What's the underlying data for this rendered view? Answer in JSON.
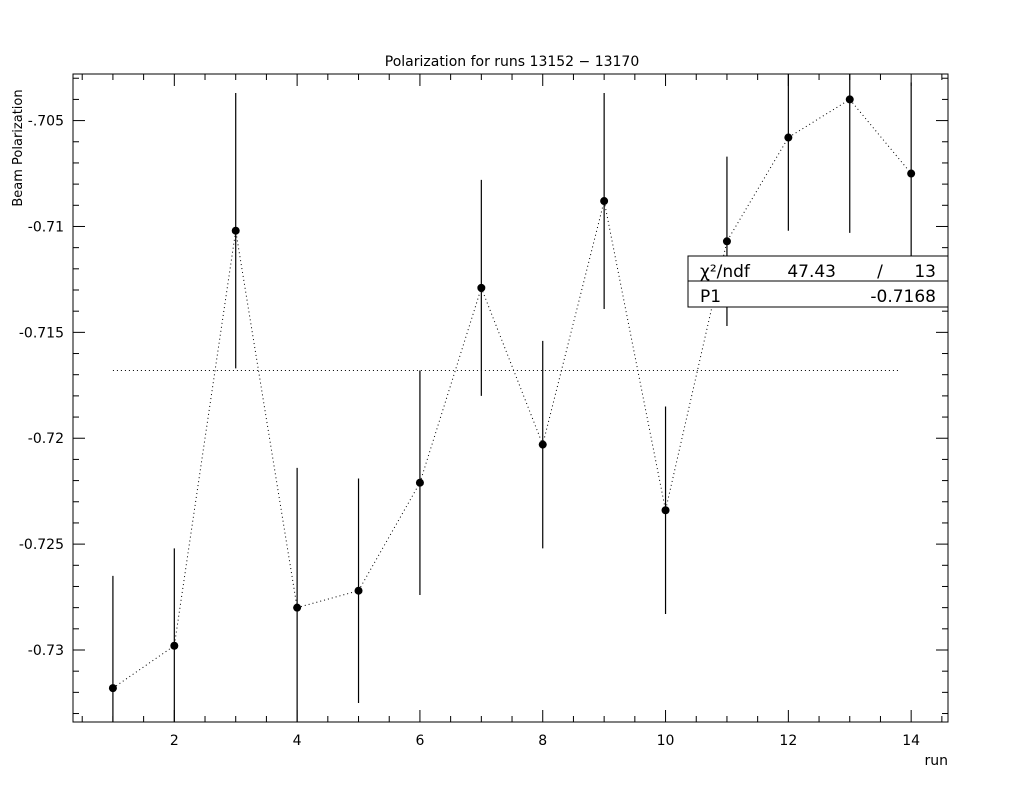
{
  "chart_data": {
    "type": "scatter",
    "title": "Polarization for runs 13152 − 13170",
    "xlabel": "run",
    "ylabel": "Beam Polarization",
    "xlim": [
      0.35,
      14.6
    ],
    "ylim": [
      -0.7334,
      -0.7028
    ],
    "x_ticks": [
      2,
      4,
      6,
      8,
      10,
      12,
      14
    ],
    "y_ticks": [
      -0.705,
      -0.71,
      -0.715,
      -0.72,
      -0.725,
      -0.73
    ],
    "y_tick_labels": [
      "-.705",
      "-0.71",
      "-0.715",
      "-0.72",
      "-0.725",
      "-0.73"
    ],
    "series": [
      {
        "x": [
          1,
          2,
          3,
          4,
          5,
          6,
          7,
          8,
          9,
          10,
          11,
          12,
          13,
          14
        ],
        "y": [
          -0.7318,
          -0.7298,
          -0.7102,
          -0.728,
          -0.7272,
          -0.7221,
          -0.7129,
          -0.7203,
          -0.7088,
          -0.7234,
          -0.7107,
          -0.7058,
          -0.704,
          -0.7075
        ],
        "errors": [
          0.0053,
          0.0046,
          0.0065,
          0.0066,
          0.0053,
          0.0053,
          0.0051,
          0.0049,
          0.0051,
          0.0049,
          0.004,
          0.0044,
          0.0063,
          0.0043
        ]
      }
    ],
    "fit": {
      "type": "constant",
      "value": -0.7168,
      "x_range": [
        1,
        13.8
      ]
    },
    "stats_box": {
      "row1_label": "χ²/ndf",
      "row1_value1": "47.43",
      "row1_sep": "/",
      "row1_value2": "13",
      "row2_label": "P1",
      "row2_value": "-0.7168"
    },
    "grid": false,
    "connect_points": "dotted"
  }
}
